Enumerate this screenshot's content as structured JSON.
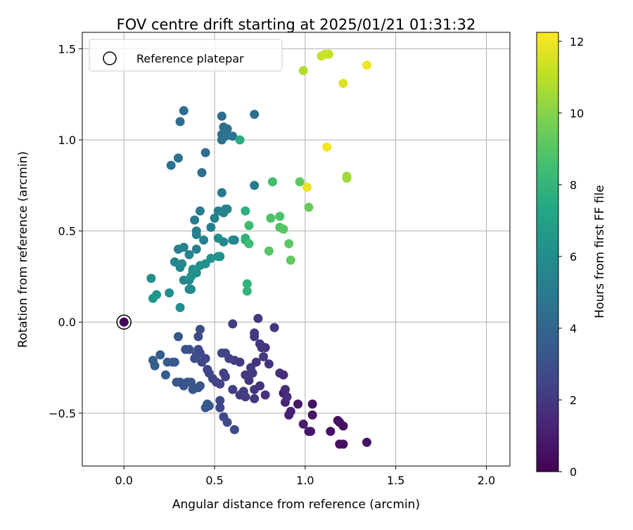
{
  "chart_data": {
    "type": "scatter",
    "title": "FOV centre drift starting at 2025/01/21 01:31:32",
    "xlabel": "Angular distance from reference (arcmin)",
    "ylabel": "Rotation from reference (arcmin)",
    "xlim": [
      -0.23,
      2.13
    ],
    "ylim": [
      -0.79,
      1.59
    ],
    "xticks": [
      0.0,
      0.5,
      1.0,
      1.5,
      2.0
    ],
    "xtick_labels": [
      "0.0",
      "0.5",
      "1.0",
      "1.5",
      "2.0"
    ],
    "yticks": [
      -0.5,
      0.0,
      0.5,
      1.0,
      1.5
    ],
    "ytick_labels": [
      "−0.5",
      "0.0",
      "0.5",
      "1.0",
      "1.5"
    ],
    "grid": true,
    "legend": {
      "placement": "top-left",
      "entries": [
        "Reference platepar"
      ]
    },
    "reference_point": {
      "name": "Reference platepar",
      "x": 0.0,
      "y": 0.0
    },
    "colorbar": {
      "label": "Hours from first FF file",
      "range": [
        0,
        12.25
      ],
      "ticks": [
        0,
        2,
        4,
        6,
        8,
        10,
        12
      ],
      "tick_labels": [
        "0",
        "2",
        "4",
        "6",
        "8",
        "10",
        "12"
      ],
      "colormap": "viridis"
    },
    "series": [
      {
        "values": [
          [
            0.0,
            0.0,
            0.1
          ],
          [
            0.88,
            -0.39,
            0.9
          ],
          [
            0.96,
            -0.45,
            0.8
          ],
          [
            1.04,
            -0.45,
            0.6
          ],
          [
            0.89,
            -0.44,
            1.3
          ],
          [
            0.91,
            -0.51,
            1.1
          ],
          [
            0.92,
            -0.49,
            1.2
          ],
          [
            0.99,
            -0.56,
            0.9
          ],
          [
            1.04,
            -0.51,
            0.7
          ],
          [
            1.02,
            -0.6,
            0.8
          ],
          [
            1.03,
            -0.6,
            0.8
          ],
          [
            1.14,
            -0.6,
            0.6
          ],
          [
            1.18,
            -0.54,
            0.5
          ],
          [
            1.19,
            -0.55,
            0.6
          ],
          [
            1.21,
            -0.57,
            0.5
          ],
          [
            1.19,
            -0.67,
            0.5
          ],
          [
            1.21,
            -0.67,
            0.5
          ],
          [
            1.34,
            -0.66,
            0.6
          ],
          [
            0.8,
            -0.23,
            1.8
          ],
          [
            0.86,
            -0.28,
            1.7
          ],
          [
            0.88,
            -0.29,
            1.6
          ],
          [
            0.89,
            -0.37,
            1.5
          ],
          [
            0.9,
            -0.41,
            1.6
          ],
          [
            0.75,
            -0.35,
            1.8
          ],
          [
            0.78,
            -0.4,
            1.7
          ],
          [
            0.72,
            -0.42,
            1.9
          ],
          [
            0.72,
            -0.37,
            1.9
          ],
          [
            0.69,
            -0.32,
            1.9
          ],
          [
            0.67,
            -0.29,
            2.0
          ],
          [
            0.73,
            -0.22,
            1.8
          ],
          [
            0.77,
            -0.19,
            1.9
          ],
          [
            0.76,
            -0.14,
            1.9
          ],
          [
            0.78,
            -0.14,
            1.8
          ],
          [
            0.75,
            -0.12,
            1.9
          ],
          [
            0.72,
            -0.08,
            2.0
          ],
          [
            0.72,
            -0.06,
            2.0
          ],
          [
            0.74,
            0.02,
            2.0
          ],
          [
            0.83,
            -0.03,
            1.9
          ],
          [
            0.6,
            -0.01,
            2.2
          ],
          [
            0.61,
            -0.21,
            2.1
          ],
          [
            0.64,
            -0.22,
            2.1
          ],
          [
            0.66,
            -0.38,
            2.2
          ],
          [
            0.67,
            -0.41,
            2.2
          ],
          [
            0.64,
            -0.4,
            2.2
          ],
          [
            0.6,
            -0.37,
            2.3
          ],
          [
            0.56,
            -0.3,
            2.4
          ],
          [
            0.55,
            -0.28,
            2.4
          ],
          [
            0.51,
            -0.33,
            2.5
          ],
          [
            0.53,
            -0.34,
            2.5
          ],
          [
            0.49,
            -0.31,
            2.5
          ],
          [
            0.46,
            -0.26,
            2.6
          ],
          [
            0.47,
            -0.28,
            2.6
          ],
          [
            0.45,
            -0.2,
            2.6
          ],
          [
            0.42,
            -0.17,
            2.6
          ],
          [
            0.41,
            -0.15,
            2.7
          ],
          [
            0.43,
            -0.22,
            2.6
          ],
          [
            0.4,
            -0.18,
            2.7
          ],
          [
            0.42,
            -0.04,
            2.8
          ],
          [
            0.41,
            -0.08,
            2.8
          ],
          [
            0.54,
            -0.17,
            2.5
          ],
          [
            0.56,
            -0.17,
            2.5
          ],
          [
            0.58,
            -0.2,
            2.4
          ],
          [
            0.7,
            -0.25,
            2.1
          ],
          [
            0.71,
            -0.28,
            2.1
          ],
          [
            0.53,
            -0.43,
            2.6
          ],
          [
            0.55,
            -0.52,
            2.6
          ],
          [
            0.57,
            -0.55,
            2.7
          ],
          [
            0.61,
            -0.59,
            2.7
          ],
          [
            0.53,
            -0.47,
            2.6
          ],
          [
            0.39,
            -0.2,
            3.0
          ],
          [
            0.36,
            -0.15,
            3.1
          ],
          [
            0.34,
            -0.15,
            3.1
          ],
          [
            0.3,
            -0.08,
            3.2
          ],
          [
            0.33,
            -0.35,
            3.3
          ],
          [
            0.35,
            -0.33,
            3.3
          ],
          [
            0.38,
            -0.37,
            3.3
          ],
          [
            0.37,
            -0.33,
            3.3
          ],
          [
            0.31,
            -0.33,
            3.3
          ],
          [
            0.29,
            -0.33,
            3.3
          ],
          [
            0.27,
            -0.22,
            3.4
          ],
          [
            0.28,
            -0.22,
            3.4
          ],
          [
            0.24,
            -0.22,
            3.5
          ],
          [
            0.2,
            -0.18,
            3.6
          ],
          [
            0.23,
            -0.29,
            3.6
          ],
          [
            0.16,
            -0.21,
            3.7
          ],
          [
            0.17,
            -0.24,
            3.7
          ],
          [
            0.46,
            -0.45,
            3.3
          ],
          [
            0.47,
            -0.46,
            3.3
          ],
          [
            0.45,
            -0.47,
            3.3
          ],
          [
            0.41,
            -0.36,
            3.2
          ],
          [
            0.42,
            -0.35,
            3.2
          ],
          [
            0.33,
            1.16,
            4.4
          ],
          [
            0.31,
            1.1,
            4.4
          ],
          [
            0.26,
            0.86,
            4.6
          ],
          [
            0.3,
            0.9,
            4.5
          ],
          [
            0.45,
            0.93,
            4.4
          ],
          [
            0.43,
            0.82,
            4.4
          ],
          [
            0.54,
            1.13,
            4.3
          ],
          [
            0.55,
            1.07,
            4.4
          ],
          [
            0.57,
            1.06,
            4.4
          ],
          [
            0.56,
            1.04,
            4.5
          ],
          [
            0.54,
            1.03,
            4.6
          ],
          [
            0.56,
            1.02,
            4.6
          ],
          [
            0.54,
            1.0,
            4.6
          ],
          [
            0.6,
            1.02,
            4.6
          ],
          [
            0.72,
            1.14,
            4.4
          ],
          [
            0.72,
            0.75,
            5.0
          ],
          [
            0.54,
            0.71,
            5.0
          ],
          [
            0.42,
            0.61,
            5.1
          ],
          [
            0.39,
            0.56,
            5.1
          ],
          [
            0.4,
            0.5,
            5.2
          ],
          [
            0.4,
            0.48,
            5.3
          ],
          [
            0.44,
            0.45,
            5.3
          ],
          [
            0.48,
            0.52,
            5.3
          ],
          [
            0.5,
            0.57,
            5.4
          ],
          [
            0.52,
            0.61,
            5.4
          ],
          [
            0.55,
            0.6,
            5.4
          ],
          [
            0.56,
            0.62,
            5.5
          ],
          [
            0.57,
            0.62,
            5.5
          ],
          [
            0.33,
            0.41,
            5.4
          ],
          [
            0.3,
            0.4,
            5.4
          ],
          [
            0.4,
            0.4,
            5.3
          ],
          [
            0.36,
            0.37,
            5.5
          ],
          [
            0.28,
            0.33,
            5.6
          ],
          [
            0.32,
            0.32,
            5.6
          ],
          [
            0.31,
            0.3,
            5.6
          ],
          [
            0.33,
            0.23,
            5.7
          ],
          [
            0.36,
            0.23,
            5.7
          ],
          [
            0.37,
            0.18,
            5.8
          ],
          [
            0.36,
            0.18,
            5.8
          ],
          [
            0.25,
            0.16,
            5.9
          ],
          [
            0.15,
            0.24,
            5.9
          ],
          [
            0.31,
            0.08,
            6.0
          ],
          [
            0.55,
            0.44,
            5.7
          ],
          [
            0.6,
            0.45,
            5.7
          ],
          [
            0.61,
            0.45,
            5.7
          ],
          [
            0.52,
            0.46,
            6.0
          ],
          [
            0.45,
            0.32,
            6.1
          ],
          [
            0.42,
            0.31,
            6.1
          ],
          [
            0.4,
            0.27,
            6.1
          ],
          [
            0.38,
            0.29,
            6.2
          ],
          [
            0.38,
            0.28,
            6.2
          ],
          [
            0.37,
            0.25,
            6.2
          ],
          [
            0.48,
            0.35,
            6.2
          ],
          [
            0.52,
            0.36,
            6.2
          ],
          [
            0.53,
            0.36,
            6.2
          ],
          [
            0.18,
            0.15,
            6.4
          ],
          [
            0.16,
            0.13,
            6.4
          ],
          [
            0.64,
            1.0,
            7.6
          ],
          [
            0.67,
            0.61,
            7.8
          ],
          [
            0.67,
            0.46,
            7.9
          ],
          [
            0.67,
            0.45,
            7.9
          ],
          [
            0.68,
            0.21,
            7.9
          ],
          [
            0.68,
            0.17,
            8.0
          ],
          [
            0.69,
            0.53,
            8.3
          ],
          [
            0.69,
            0.43,
            8.4
          ],
          [
            0.82,
            0.77,
            8.5
          ],
          [
            0.86,
            0.58,
            8.7
          ],
          [
            0.81,
            0.57,
            8.8
          ],
          [
            0.86,
            0.52,
            8.9
          ],
          [
            0.88,
            0.51,
            9.0
          ],
          [
            0.8,
            0.39,
            9.0
          ],
          [
            0.91,
            0.43,
            9.1
          ],
          [
            0.92,
            0.34,
            9.2
          ],
          [
            0.97,
            0.77,
            9.2
          ],
          [
            1.02,
            0.63,
            9.4
          ],
          [
            0.99,
            1.38,
            10.8
          ],
          [
            1.09,
            1.46,
            11.2
          ],
          [
            1.11,
            1.47,
            11.3
          ],
          [
            1.13,
            1.47,
            11.2
          ],
          [
            1.21,
            1.31,
            11.6
          ],
          [
            1.23,
            0.79,
            10.4
          ],
          [
            1.23,
            0.8,
            10.5
          ],
          [
            1.01,
            0.74,
            11.9
          ],
          [
            1.12,
            0.96,
            12.1
          ],
          [
            1.34,
            1.41,
            12.0
          ]
        ]
      }
    ]
  }
}
